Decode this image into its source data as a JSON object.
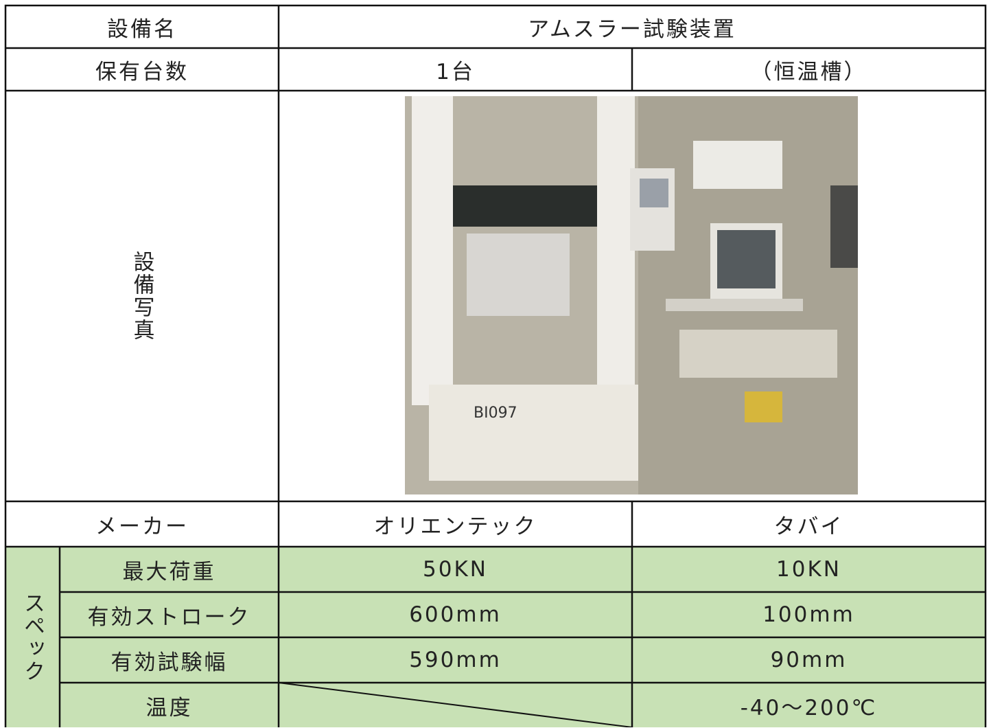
{
  "table": {
    "equipment_label": "設備名",
    "equipment_name": "アムスラー試験装置",
    "count_label": "保有台数",
    "count": "1台",
    "count_note": "（恒温槽）",
    "photo_label": "設備写真",
    "maker_label": "メーカー",
    "makers": [
      "オリエンテック",
      "タバイ"
    ],
    "spec_label": "スペック",
    "specs": [
      {
        "name": "最大荷重",
        "values": [
          "50KN",
          "10KN"
        ]
      },
      {
        "name": "有効ストローク",
        "values": [
          "600mm",
          "100mm"
        ]
      },
      {
        "name": "有効試験幅",
        "values": [
          "590mm",
          "90mm"
        ]
      },
      {
        "name": "温度",
        "tabai_value": "-40～200℃"
      }
    ]
  }
}
